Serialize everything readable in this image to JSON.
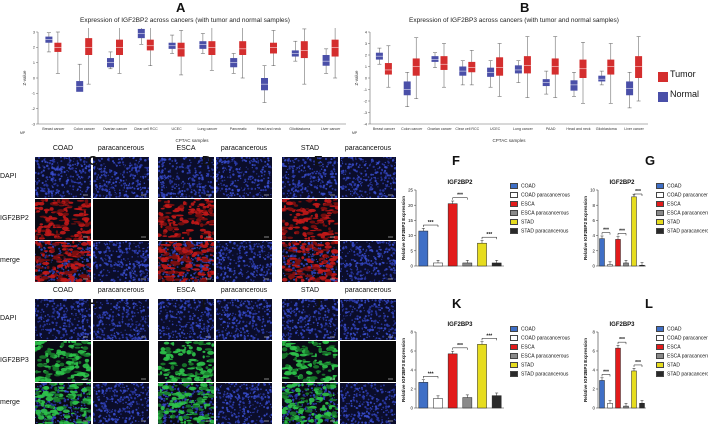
{
  "panels": {
    "A": "A",
    "B": "B",
    "C": "C",
    "D": "D",
    "E": "E",
    "F": "F",
    "G": "G",
    "H": "H",
    "I": "I",
    "J": "J",
    "K": "K",
    "L": "L"
  },
  "boxplot_A": {
    "title": "Expression of IGF2BP2 across cancers (with tumor and normal samples)",
    "xlabel": "CPTAC samples",
    "ylabel": "Z-value",
    "corner": "MP",
    "yticks": [
      "-3",
      "-2",
      "-1",
      "0",
      "1",
      "2",
      "3"
    ],
    "categories": [
      "Breast cancer",
      "Colon cancer",
      "Ovarian cancer",
      "Clear cell RCC",
      "UCEC",
      "Lung cancer",
      "Pancreatic",
      "Head and neck",
      "Glioblastoma",
      "Liver cancer"
    ]
  },
  "boxplot_B": {
    "title": "Expression of IGF2BP3 across cancers (with tumor and normal samples)",
    "xlabel": "CPTAC samples",
    "ylabel": "Z-value",
    "corner": "MP",
    "yticks": [
      "-4",
      "-3",
      "-2",
      "-1",
      "0",
      "1",
      "2",
      "3",
      "4"
    ],
    "categories": [
      "Breast cancer",
      "Colon cancer",
      "Ovarian cancer",
      "Clear cell RCC",
      "UCEC",
      "Lung cancer",
      "PAAD",
      "Head and neck",
      "Glioblastoma",
      "Liver cancer"
    ]
  },
  "boxplot_legend": {
    "tumor": "Tumor",
    "normal": "Normal"
  },
  "colors": {
    "tumor": "#d42e2e",
    "normal": "#4a4fa8",
    "coad": "#3f6fc6",
    "esca": "#e21b1b",
    "stad": "#e6dc1e",
    "para_white": "#ffffff",
    "para_grey": "#8a8a8a",
    "para_black": "#2a2a2a"
  },
  "micro_top": {
    "row_labels": [
      "DAPI",
      "IGF2BP2",
      "merge"
    ],
    "col_labels": [
      "COAD",
      "paracancerous",
      "ESCA",
      "paracancerous",
      "STAD",
      "paracancerous"
    ]
  },
  "micro_bottom": {
    "row_labels": [
      "DAPI",
      "IGF2BP3",
      "merge"
    ],
    "col_labels": [
      "COAD",
      "paracancerous",
      "ESCA",
      "paracancerous",
      "STAD",
      "paracancerous"
    ]
  },
  "legend_labels": [
    "COAD",
    "COAD paracancerous",
    "ESCA",
    "ESCA paracancerous",
    "STAD",
    "STAD paracancerous"
  ],
  "sig": "***",
  "chart_data": [
    {
      "id": "F",
      "type": "bar",
      "title": "IGF2BP2",
      "ylabel": "Relative  IGF2BP2 Expression",
      "ylim": [
        0,
        25
      ],
      "yticks": [
        0,
        5,
        10,
        15,
        20,
        25
      ],
      "categories": [
        "COAD",
        "COAD paracancerous",
        "ESCA",
        "ESCA paracancerous",
        "STAD",
        "STAD paracancerous"
      ],
      "values": [
        11.5,
        1,
        20.5,
        1,
        7.5,
        1
      ]
    },
    {
      "id": "G",
      "type": "bar",
      "title": "IGF2BP2",
      "ylabel": "Relative  IGF2BP2 Expression",
      "ylim": [
        0,
        10
      ],
      "yticks": [
        0,
        2,
        4,
        6,
        8,
        10
      ],
      "categories": [
        "COAD",
        "COAD paracancerous",
        "ESCA",
        "ESCA paracancerous",
        "STAD",
        "STAD paracancerous"
      ],
      "values": [
        3.6,
        0.2,
        3.5,
        0.4,
        9.1,
        0.1
      ]
    },
    {
      "id": "K",
      "type": "bar",
      "title": "IGF2BP3",
      "ylabel": "Relative  IGF2BP3 Expression",
      "ylim": [
        0,
        8
      ],
      "yticks": [
        0,
        2,
        4,
        6,
        8
      ],
      "categories": [
        "COAD",
        "COAD paracancerous",
        "ESCA",
        "ESCA paracancerous",
        "STAD",
        "STAD paracancerous"
      ],
      "values": [
        2.7,
        1.0,
        5.7,
        1.1,
        6.7,
        1.3
      ]
    },
    {
      "id": "L",
      "type": "bar",
      "title": "IGF2BP3",
      "ylabel": "Relative  IGF2BP3 Expression",
      "ylim": [
        0,
        8
      ],
      "yticks": [
        0,
        2,
        4,
        6,
        8
      ],
      "categories": [
        "COAD",
        "COAD paracancerous",
        "ESCA",
        "ESCA paracancerous",
        "STAD",
        "STAD paracancerous"
      ],
      "values": [
        2.9,
        0.5,
        6.3,
        0.2,
        3.9,
        0.5
      ]
    }
  ]
}
